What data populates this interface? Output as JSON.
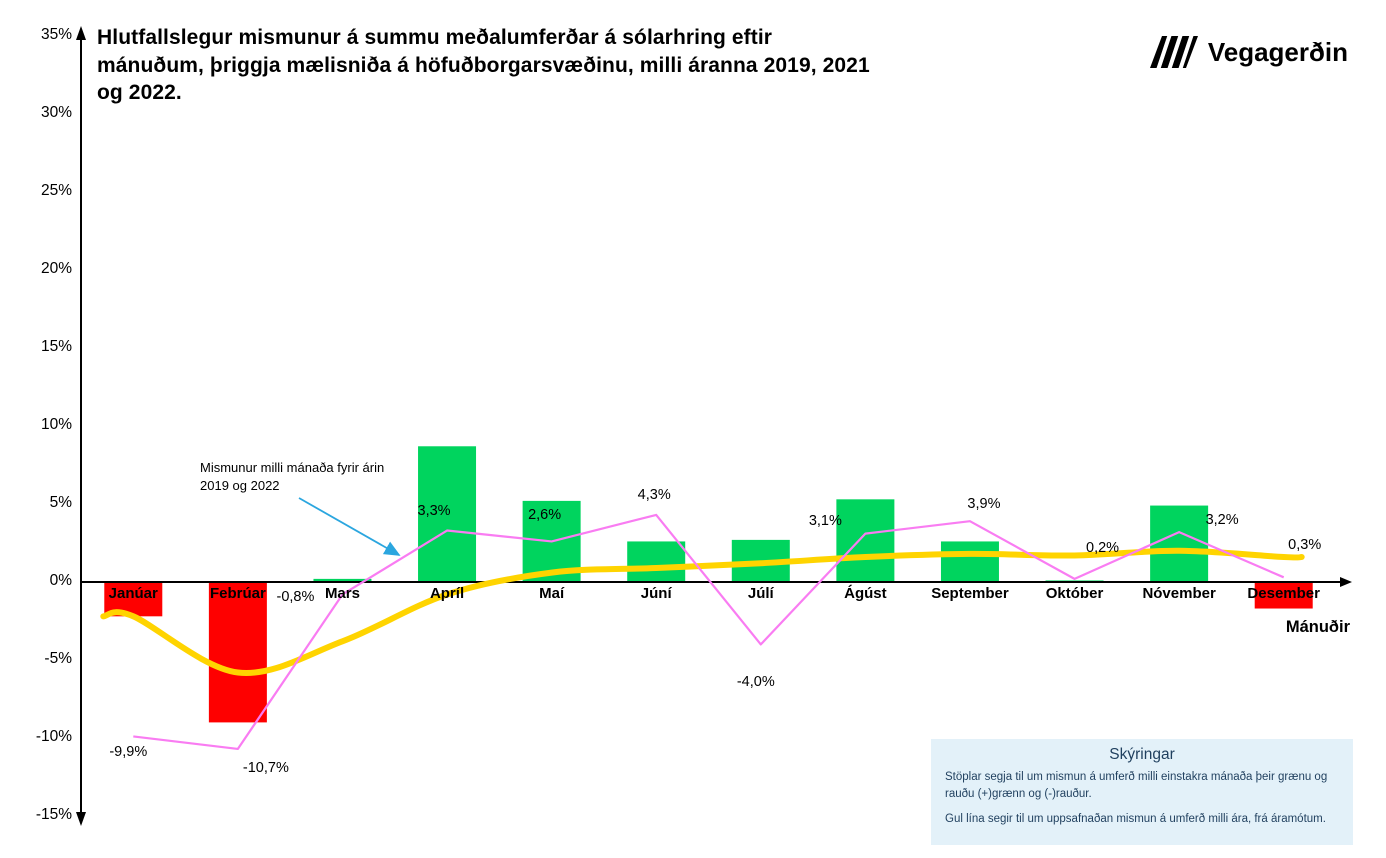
{
  "header": {
    "title": "Hlutfallslegur mismunur á summu meðalumferðar á sólarhring eftir mánuðum, þriggja mælisniða á höfuðborgarsvæðinu, milli áranna 2019, 2021 og 2022.",
    "logo_text": "Vegagerðin"
  },
  "annotation": {
    "text": "Mismunur milli mánaða fyrir árin 2019 og 2022"
  },
  "legend_box": {
    "title": "Skýringar",
    "line1": "Stöplar segja til um mismun á umferð milli einstakra mánaða  þeir grænu og rauðu (+)grænn og (-)rauður.",
    "line2": "Gul lína segir til um uppsafnaðan mismun á umferð milli ára, frá áramótum."
  },
  "colors": {
    "axis": "#000000",
    "annotation_arrow": "#2BA6DF",
    "legend_bg": "#E3F1F9",
    "legend_text": "#1F3F5E"
  },
  "chart_data": {
    "type": "bar",
    "categories": [
      "Janúar",
      "Febrúar",
      "Mars",
      "Apríl",
      "Maí",
      "Júní",
      "Júlí",
      "Ágúst",
      "September",
      "Október",
      "Nóvember",
      "Desember"
    ],
    "xlabel": "Mánuðir",
    "ylabel": "",
    "ylim": [
      -15,
      35
    ],
    "ytick_step": 5,
    "ytick_suffix": "%",
    "grid": false,
    "series": [
      {
        "name": "Mismunur á umferð milli einstakra mánaða",
        "type": "bar",
        "values": [
          -2.2,
          -9.0,
          0.2,
          8.7,
          5.2,
          2.6,
          2.7,
          5.3,
          2.6,
          0.1,
          4.9,
          -1.7
        ],
        "color_positive": "#00D45E",
        "color_negative": "#FE0000"
      },
      {
        "name": "Mismunur milli mánaða fyrir árin 2019 og 2022",
        "type": "line",
        "color": "#F97CF2",
        "values": [
          -9.9,
          -10.7,
          -0.8,
          3.3,
          2.6,
          4.3,
          -4.0,
          3.1,
          3.9,
          0.2,
          3.2,
          0.3
        ],
        "labels": [
          "-9,9%",
          "-10,7%",
          "-0,8%",
          "3,3%",
          "2,6%",
          "4,3%",
          "-4,0%",
          "3,1%",
          "3,9%",
          "0,2%",
          "3,2%",
          "0,3%"
        ],
        "label_offsets": [
          [
            -5,
            16
          ],
          [
            28,
            19
          ],
          [
            -47,
            3
          ],
          [
            -13,
            -20
          ],
          [
            -7,
            -26
          ],
          [
            -2,
            -20
          ],
          [
            -5,
            38
          ],
          [
            -40,
            -13
          ],
          [
            14,
            -17
          ],
          [
            28,
            -31
          ],
          [
            43,
            -12
          ],
          [
            21,
            -32
          ]
        ]
      },
      {
        "name": "Uppsafnaður mismunur á umferð milli ára, frá áramótum",
        "type": "line",
        "color": "#FFD400",
        "values": [
          -2.2,
          -5.8,
          -3.8,
          -0.8,
          0.6,
          0.9,
          1.2,
          1.6,
          1.8,
          1.7,
          2.0,
          1.6
        ]
      }
    ]
  }
}
